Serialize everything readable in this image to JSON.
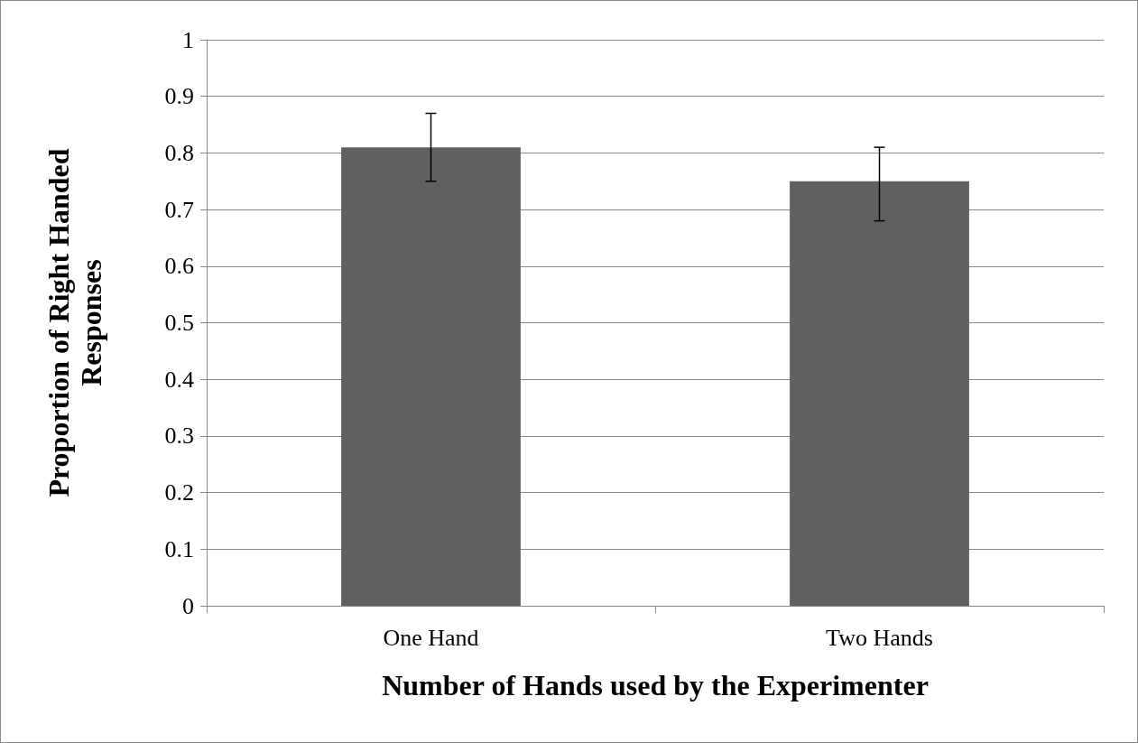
{
  "chart_data": {
    "type": "bar",
    "xlabel": "Number of Hands used by the Experimenter",
    "ylabel": "Proportion of Right Handed Responses",
    "categories": [
      "One Hand",
      "Two Hands"
    ],
    "values": [
      0.81,
      0.75
    ],
    "errors": [
      [
        0.75,
        0.87
      ],
      [
        0.68,
        0.81
      ]
    ],
    "color": "#606060",
    "ylim": [
      0,
      1
    ],
    "yticks": [
      0,
      0.1,
      0.2,
      0.3,
      0.4,
      0.5,
      0.6,
      0.7,
      0.8,
      0.9,
      1
    ],
    "grid": "y"
  }
}
